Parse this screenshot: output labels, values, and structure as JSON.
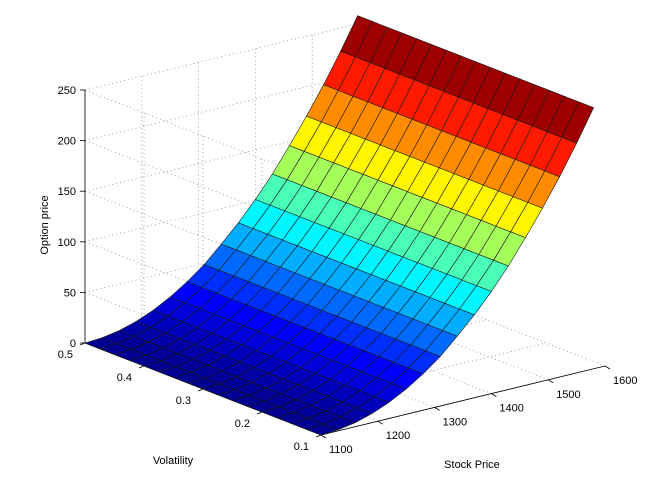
{
  "chart_data": {
    "type": "surface",
    "title": "",
    "xlabel": "Stock Price",
    "ylabel": "Volatility",
    "zlabel": "Option price",
    "xlim": [
      1100,
      1600
    ],
    "ylim": [
      0.1,
      0.5
    ],
    "zlim": [
      0,
      250
    ],
    "x_ticks": [
      "1100",
      "1200",
      "1300",
      "1400",
      "1500",
      "1600"
    ],
    "y_ticks": [
      "0.1",
      "0.2",
      "0.3",
      "0.4",
      "0.5"
    ],
    "z_ticks": [
      "0",
      "50",
      "100",
      "150",
      "200",
      "250"
    ],
    "x": [
      1100,
      1130,
      1160,
      1190,
      1220,
      1250,
      1280,
      1310,
      1340,
      1370,
      1400,
      1430,
      1460,
      1490,
      1520,
      1550,
      1580
    ],
    "y": [
      0.1,
      0.125,
      0.15,
      0.175,
      0.2,
      0.225,
      0.25,
      0.275,
      0.3,
      0.325,
      0.35,
      0.375,
      0.4,
      0.425,
      0.45,
      0.475,
      0.5
    ],
    "price_at_volatility_0.1": [
      0,
      1,
      4,
      9,
      16,
      25,
      36,
      49,
      65,
      82,
      101,
      122,
      146,
      171,
      198,
      227,
      258
    ],
    "price_at_volatility_0.5": [
      0,
      1,
      4,
      9,
      16,
      25,
      36,
      49,
      65,
      82,
      101,
      122,
      146,
      171,
      198,
      227,
      258
    ],
    "colormap": "jet",
    "colormap_stops": [
      "#00008f",
      "#0000ff",
      "#0080ff",
      "#00ffff",
      "#80ff80",
      "#ffff00",
      "#ff8000",
      "#ff0000",
      "#800000"
    ],
    "grid": true,
    "box": true
  }
}
